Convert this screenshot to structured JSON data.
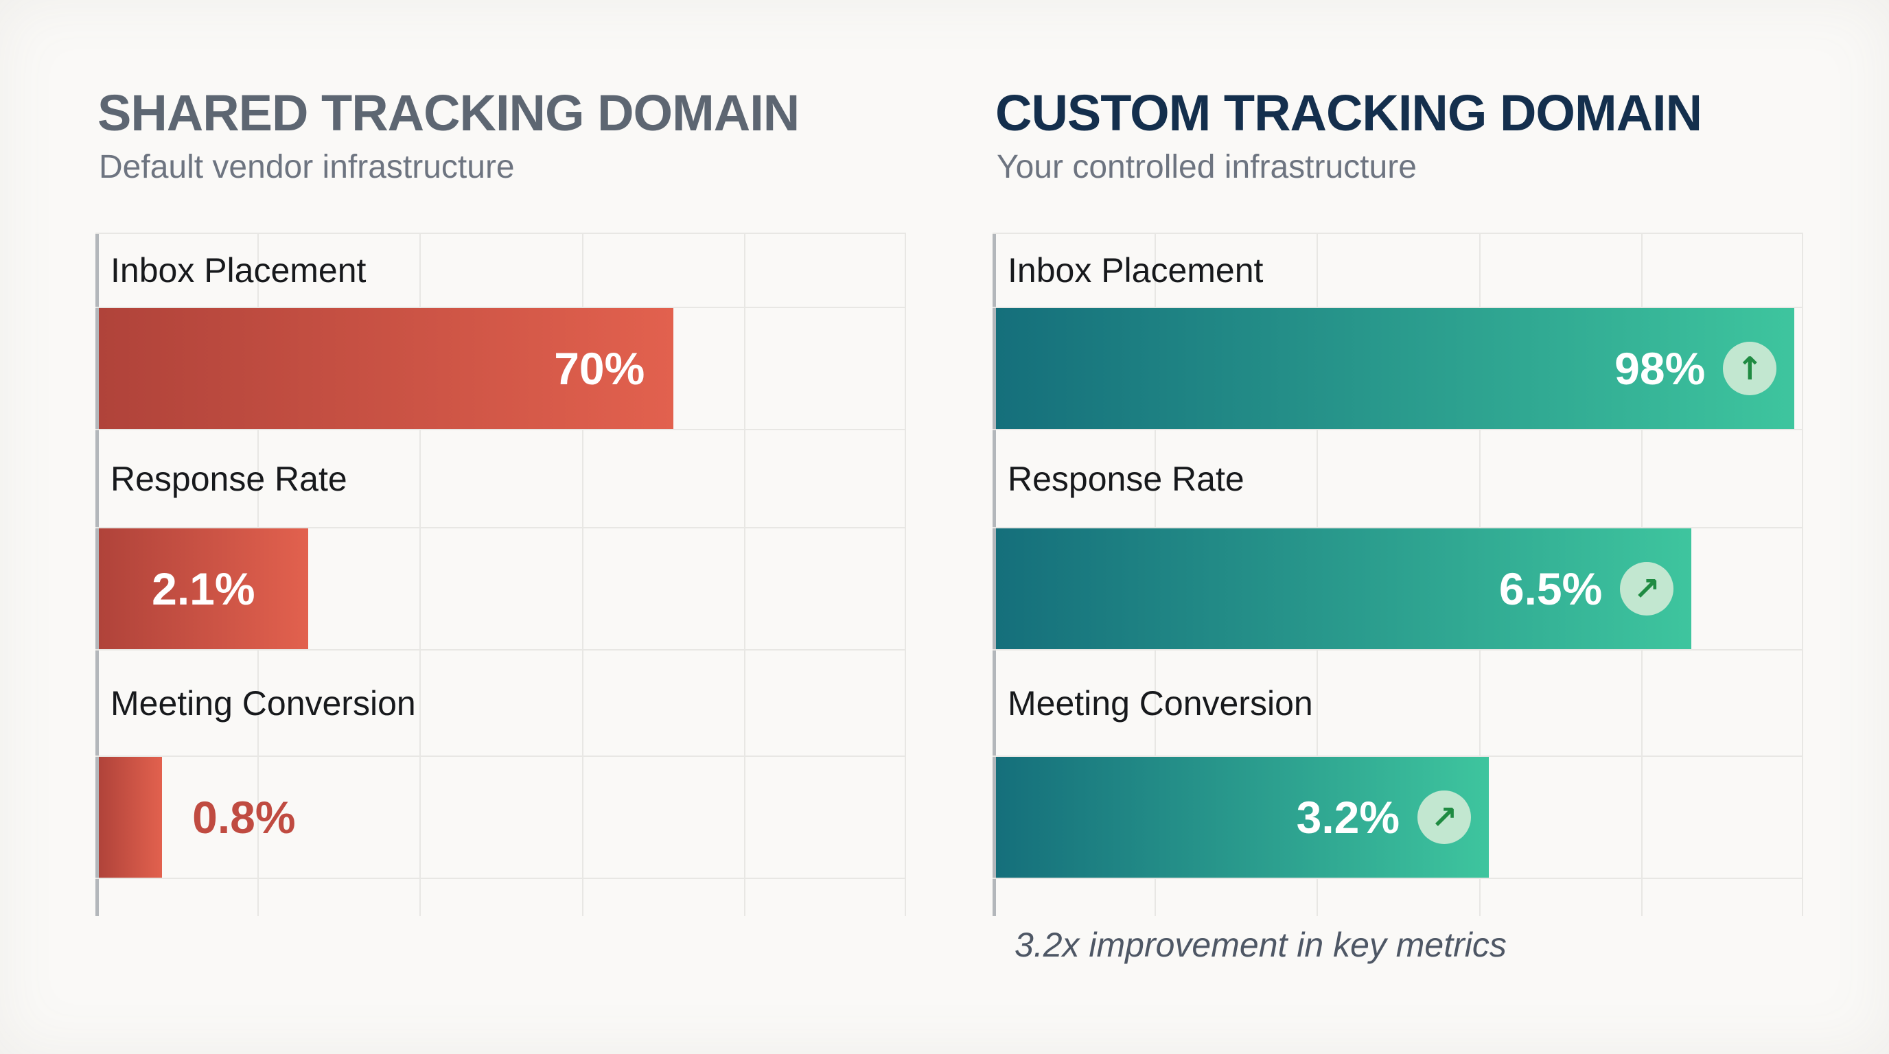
{
  "left_panel": {
    "title": "SHARED TRACKING DOMAIN",
    "subtitle": "Default vendor infrastructure",
    "rows": [
      {
        "label": "Inbox Placement",
        "value": "70%",
        "display_pct": 70.9,
        "value_placement": "inside-right"
      },
      {
        "label": "Response Rate",
        "value": "2.1%",
        "display_pct": 25.8,
        "value_placement": "inside-center"
      },
      {
        "label": "Meeting Conversion",
        "value": "0.8%",
        "display_pct": 7.8,
        "value_placement": "outside-right"
      }
    ]
  },
  "right_panel": {
    "title": "CUSTOM TRACKING DOMAIN",
    "subtitle": "Your controlled infrastructure",
    "rows": [
      {
        "label": "Inbox Placement",
        "value": "98%",
        "display_pct": 98.5,
        "badge_icon": "arrow-up",
        "badge_glyph": "↑"
      },
      {
        "label": "Response Rate",
        "value": "6.5%",
        "display_pct": 85.8,
        "badge_icon": "arrow-up-right",
        "badge_glyph": "↗"
      },
      {
        "label": "Meeting Conversion",
        "value": "3.2%",
        "display_pct": 60.8,
        "badge_icon": "arrow-up-right",
        "badge_glyph": "↗"
      }
    ],
    "footnote": "3.2x improvement in key metrics"
  },
  "colors": {
    "background": "#faf9f7",
    "left_title": "#5d6672",
    "right_title": "#142f4d",
    "subtitle": "#6d7480",
    "row_label": "#17191c",
    "red_bar_gradient": [
      "#b0433a",
      "#e2614e"
    ],
    "teal_bar_gradient": [
      "#156f7b",
      "#3ec59e"
    ],
    "bar_value_text": "#ffffff",
    "outside_value_text": "#c04b41",
    "badge_background": "#c2e7d0",
    "badge_arrow": "#1f8b42",
    "gridline": "#e8e7e4",
    "axis_line": "#b3b7bb",
    "footnote_text": "#4e5765"
  },
  "chart_data": [
    {
      "type": "bar",
      "orientation": "horizontal",
      "title": "SHARED TRACKING DOMAIN",
      "subtitle": "Default vendor infrastructure",
      "categories": [
        "Inbox Placement",
        "Response Rate",
        "Meeting Conversion"
      ],
      "values": [
        70,
        2.1,
        0.8
      ],
      "value_labels": [
        "70%",
        "2.1%",
        "0.8%"
      ],
      "unit": "percent",
      "xlim": [
        0,
        100
      ],
      "grid": true,
      "legend": "none",
      "bar_gradient": [
        "#b0433a",
        "#e2614e"
      ],
      "bar_display_widths_pct": [
        70.9,
        25.8,
        7.8
      ],
      "note": "bar lengths are drawn non-linearly for visibility of small values"
    },
    {
      "type": "bar",
      "orientation": "horizontal",
      "title": "CUSTOM TRACKING DOMAIN",
      "subtitle": "Your controlled infrastructure",
      "categories": [
        "Inbox Placement",
        "Response Rate",
        "Meeting Conversion"
      ],
      "values": [
        98,
        6.5,
        3.2
      ],
      "value_labels": [
        "98%",
        "6.5%",
        "3.2%"
      ],
      "unit": "percent",
      "xlim": [
        0,
        100
      ],
      "grid": true,
      "legend": "none",
      "bar_gradient": [
        "#156f7b",
        "#3ec59e"
      ],
      "bar_display_widths_pct": [
        98.5,
        85.8,
        60.8
      ],
      "badges": [
        "arrow-up",
        "arrow-up-right",
        "arrow-up-right"
      ],
      "annotations": [
        "3.2x improvement in key metrics"
      ],
      "note": "bar lengths are drawn non-linearly for visibility of small values"
    }
  ]
}
